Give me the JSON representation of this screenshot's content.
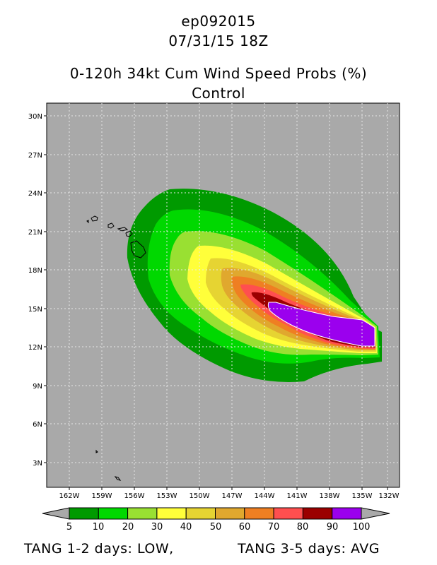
{
  "titles": {
    "storm_id": "ep092015",
    "datetime": "07/31/15 18Z",
    "product": "0-120h 34kt Cum Wind Speed Probs (%)",
    "run": "Control"
  },
  "map": {
    "lat_ticks": [
      "30N",
      "27N",
      "24N",
      "21N",
      "18N",
      "15N",
      "12N",
      "9N",
      "6N",
      "3N"
    ],
    "lon_ticks": [
      "162W",
      "159W",
      "156W",
      "153W",
      "150W",
      "147W",
      "144W",
      "141W",
      "138W",
      "135W",
      "132W"
    ],
    "lat_range": [
      1,
      31
    ],
    "lon_range": [
      -164,
      -131
    ],
    "background_color": "#a9a9a9",
    "grid": "dotted"
  },
  "colorbar": {
    "labels": [
      "5",
      "10",
      "20",
      "30",
      "40",
      "50",
      "60",
      "70",
      "80",
      "90",
      "100"
    ],
    "colors": [
      "#009a00",
      "#00d800",
      "#99e032",
      "#ffff3a",
      "#e6d432",
      "#e0a82e",
      "#ef7f22",
      "#ff4f4f",
      "#9b0000",
      "#9b00ee"
    ]
  },
  "footer": {
    "left": "TANG 1-2 days:  LOW,",
    "right": "TANG 3-5 days:  AVG"
  }
}
